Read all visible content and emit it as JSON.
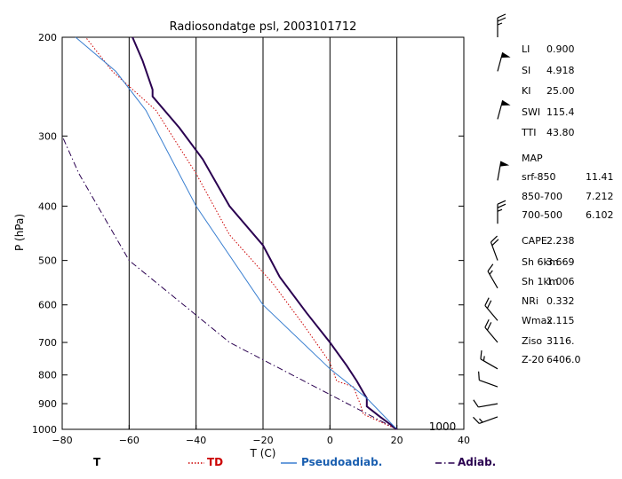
{
  "chart_data": {
    "type": "line",
    "title": "Radiosondatge    psl, 2003101712",
    "xlabel": "T (C)",
    "ylabel": "P (hPa)",
    "xlim": [
      -80,
      40
    ],
    "ylim": [
      1000,
      200
    ],
    "y_scale": "log",
    "x_ticks": [
      "-80",
      "-60",
      "-40",
      "-20",
      "0",
      "20",
      "40"
    ],
    "y_ticks": [
      "200",
      "300",
      "400",
      "500",
      "600",
      "700",
      "800",
      "900",
      "1000"
    ],
    "grid": "vertical lines at -60, -40, -20, 0, 20",
    "bottom_right_label": "1000",
    "series": [
      {
        "name": "T",
        "color": "#2a0050",
        "style": "solid",
        "points": [
          [
            20,
            1000
          ],
          [
            15,
            950
          ],
          [
            11,
            910
          ],
          [
            11,
            880
          ],
          [
            10,
            860
          ],
          [
            8,
            820
          ],
          [
            5,
            770
          ],
          [
            0,
            700
          ],
          [
            -7,
            620
          ],
          [
            -15,
            535
          ],
          [
            -20,
            470
          ],
          [
            -30,
            400
          ],
          [
            -38,
            330
          ],
          [
            -45,
            290
          ],
          [
            -53,
            255
          ],
          [
            -53,
            248
          ],
          [
            -56,
            220
          ],
          [
            -59,
            200
          ]
        ]
      },
      {
        "name": "TD",
        "color": "#cc0000",
        "style": "dotted",
        "points": [
          [
            20,
            1000
          ],
          [
            10,
            940
          ],
          [
            9,
            900
          ],
          [
            7,
            840
          ],
          [
            2,
            820
          ],
          [
            0,
            760
          ],
          [
            -8,
            650
          ],
          [
            -17,
            550
          ],
          [
            -30,
            450
          ],
          [
            -40,
            350
          ],
          [
            -52,
            270
          ],
          [
            -65,
            230
          ],
          [
            -73,
            200
          ]
        ]
      },
      {
        "name": "Pseudoadiab.",
        "color": "#3a7fd0",
        "style": "solid",
        "points": [
          [
            20,
            1000
          ],
          [
            11,
            880
          ],
          [
            0,
            780
          ],
          [
            -20,
            600
          ],
          [
            -40,
            400
          ],
          [
            -55,
            270
          ],
          [
            -64,
            230
          ],
          [
            -76,
            200
          ]
        ]
      },
      {
        "name": "Adiab.",
        "color": "#2a0050",
        "style": "dashdot",
        "points": [
          [
            20,
            1000
          ],
          [
            -30,
            700
          ],
          [
            -60,
            500
          ],
          [
            -75,
            350
          ],
          [
            -80,
            300
          ]
        ]
      }
    ],
    "legend_placement": "bottom"
  },
  "stats": [
    {
      "key": "LI",
      "value": "0.900"
    },
    {
      "key": "SI",
      "value": "4.918"
    },
    {
      "key": "KI",
      "value": "25.00"
    },
    {
      "key": "SWI",
      "value": "115.4"
    },
    {
      "key": "TTI",
      "value": "43.80"
    },
    {
      "key": "MAP",
      "value": ""
    },
    {
      "key": "srf-850",
      "value": "11.41"
    },
    {
      "key": "850-700",
      "value": "7.212"
    },
    {
      "key": "700-500",
      "value": "6.102"
    },
    {
      "key": "CAPE",
      "value": "2.238"
    },
    {
      "key": "Sh 6km",
      "value": "3.669"
    },
    {
      "key": "Sh 1km",
      "value": "1.006"
    },
    {
      "key": "NRi",
      "value": "0.332"
    },
    {
      "key": "Wmax",
      "value": "2.115"
    },
    {
      "key": "Ziso",
      "value": "3116."
    },
    {
      "key": "Z-20",
      "value": "6406.0"
    }
  ],
  "wind_barbs": {
    "color": "#000000",
    "levels": [
      {
        "pressure": 200,
        "direction": 270,
        "speed": 25
      },
      {
        "pressure": 230,
        "direction": 285,
        "speed": 50
      },
      {
        "pressure": 280,
        "direction": 285,
        "speed": 50
      },
      {
        "pressure": 360,
        "direction": 280,
        "speed": 50
      },
      {
        "pressure": 430,
        "direction": 270,
        "speed": 25
      },
      {
        "pressure": 500,
        "direction": 250,
        "speed": 20
      },
      {
        "pressure": 560,
        "direction": 240,
        "speed": 15
      },
      {
        "pressure": 640,
        "direction": 230,
        "speed": 20
      },
      {
        "pressure": 700,
        "direction": 230,
        "speed": 20
      },
      {
        "pressure": 780,
        "direction": 210,
        "speed": 15
      },
      {
        "pressure": 840,
        "direction": 200,
        "speed": 10
      },
      {
        "pressure": 900,
        "direction": 170,
        "speed": 10
      },
      {
        "pressure": 950,
        "direction": 160,
        "speed": 15
      }
    ]
  }
}
